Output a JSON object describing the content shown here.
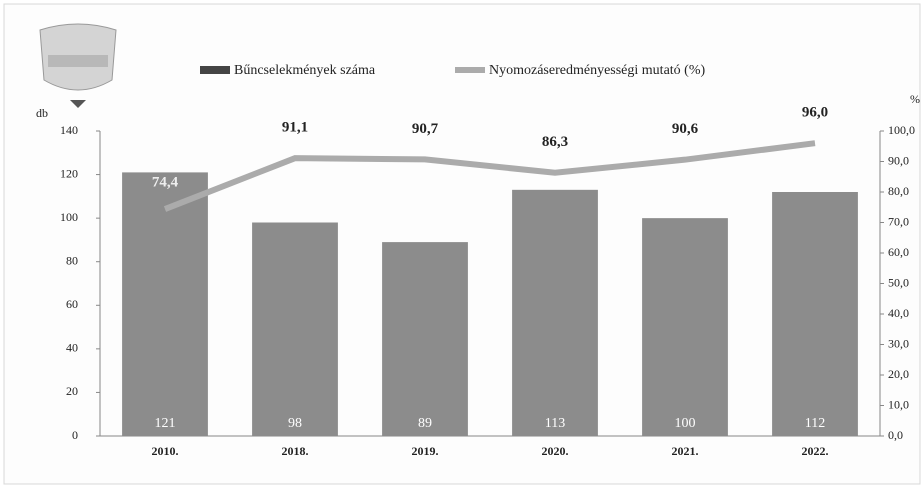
{
  "chart_data": {
    "type": "bar",
    "categories": [
      "2010.",
      "2018.",
      "2019.",
      "2020.",
      "2021.",
      "2022."
    ],
    "series": [
      {
        "name": "Bűncselekmények száma",
        "type": "bar",
        "color": "#8c8c8c",
        "values": [
          121,
          98,
          89,
          113,
          100,
          112
        ]
      },
      {
        "name": "Nyomozáseredményességi mutató (%)",
        "type": "line",
        "axis": "y2",
        "color": "#ababab",
        "values": [
          74.4,
          91.1,
          90.7,
          86.3,
          90.6,
          96.0
        ],
        "value_labels": [
          "74,4",
          "91,1",
          "90,7",
          "86,3",
          "90,6",
          "96,0"
        ]
      }
    ],
    "y_label": "db",
    "y2_label": "%",
    "ylim": [
      0,
      140
    ],
    "yticks": [
      0,
      20,
      40,
      60,
      80,
      100,
      120,
      140
    ],
    "y2lim": [
      0,
      100
    ],
    "y2ticks": [
      {
        "value": 0,
        "label": "0,0"
      },
      {
        "value": 10,
        "label": "10,0"
      },
      {
        "value": 20,
        "label": "20,0"
      },
      {
        "value": 30,
        "label": "30,0"
      },
      {
        "value": 40,
        "label": "40,0"
      },
      {
        "value": 50,
        "label": "50,0"
      },
      {
        "value": 60,
        "label": "60,0"
      },
      {
        "value": 70,
        "label": "70,0"
      },
      {
        "value": 80,
        "label": "80,0"
      },
      {
        "value": 90,
        "label": "90,0"
      },
      {
        "value": 100,
        "label": "100,0"
      }
    ],
    "grid": false
  }
}
